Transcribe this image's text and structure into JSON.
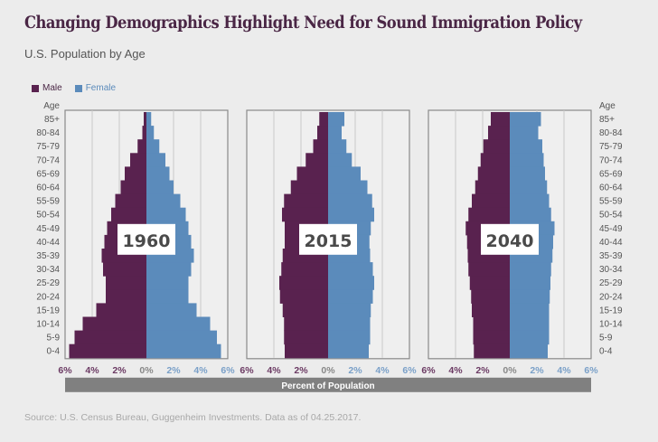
{
  "header": {
    "title": "Changing Demographics Highlight Need for Sound Immigration Policy",
    "subtitle": "U.S. Population by Age"
  },
  "legend": [
    {
      "label": "Male",
      "color": "#59224f"
    },
    {
      "label": "Female",
      "color": "#5b8bbb"
    }
  ],
  "source": "Source: U.S. Census Bureau, Guggenheim Investments. Data as of 04.25.2017.",
  "chart_data": {
    "type": "bar",
    "subtype": "population-pyramid",
    "title": "Changing Demographics Highlight Need for Sound Immigration Policy",
    "subtitle": "U.S. Population by Age",
    "xlabel": "Percent of Population",
    "ylabel": "Age",
    "xlim": [
      -6,
      6
    ],
    "xticks": [
      "6%",
      "4%",
      "2%",
      "0%",
      "2%",
      "4%",
      "6%"
    ],
    "legend_position": "top-left",
    "grid": true,
    "categories": [
      "85+",
      "80-84",
      "75-79",
      "70-74",
      "65-69",
      "60-64",
      "55-59",
      "50-54",
      "45-49",
      "40-44",
      "35-39",
      "30-34",
      "25-29",
      "20-24",
      "15-19",
      "10-14",
      "5-9",
      "0-4"
    ],
    "panels": [
      {
        "year": "1960",
        "series": [
          {
            "name": "Male",
            "values": [
              0.2,
              0.3,
              0.65,
              1.2,
              1.6,
              1.9,
              2.3,
              2.6,
              2.9,
              3.1,
              3.3,
              3.2,
              3.0,
              3.0,
              3.7,
              4.7,
              5.3,
              5.7
            ]
          },
          {
            "name": "Female",
            "values": [
              0.35,
              0.55,
              0.95,
              1.4,
              1.7,
              2.0,
              2.5,
              2.9,
              3.1,
              3.3,
              3.5,
              3.3,
              3.1,
              3.1,
              3.7,
              4.7,
              5.2,
              5.5
            ]
          }
        ]
      },
      {
        "year": "2015",
        "series": [
          {
            "name": "Male",
            "values": [
              0.65,
              0.8,
              1.1,
              1.65,
              2.3,
              2.75,
              3.25,
              3.4,
              3.2,
              3.2,
              3.35,
              3.45,
              3.6,
              3.55,
              3.35,
              3.25,
              3.25,
              3.2
            ]
          },
          {
            "name": "Female",
            "values": [
              1.2,
              1.0,
              1.35,
              1.75,
              2.4,
              2.9,
              3.25,
              3.4,
              3.15,
              3.05,
              3.1,
              3.3,
              3.4,
              3.3,
              3.15,
              3.1,
              3.1,
              3.0
            ]
          }
        ]
      },
      {
        "year": "2040",
        "series": [
          {
            "name": "Male",
            "values": [
              1.4,
              1.6,
              1.95,
              2.15,
              2.35,
              2.55,
              2.8,
              3.05,
              3.25,
              3.15,
              3.1,
              3.05,
              2.95,
              2.85,
              2.8,
              2.7,
              2.7,
              2.65
            ]
          },
          {
            "name": "Female",
            "values": [
              2.3,
              2.1,
              2.4,
              2.5,
              2.6,
              2.75,
              2.9,
              3.05,
              3.3,
              3.2,
              3.15,
              3.05,
              3.0,
              2.95,
              2.9,
              2.9,
              2.9,
              2.8
            ]
          }
        ]
      }
    ]
  },
  "colors": {
    "male": "#59224f",
    "female": "#5b8bbb",
    "axis_bar": "#808080",
    "grid": "#c8c8c8",
    "frame": "#8a8a8a"
  }
}
